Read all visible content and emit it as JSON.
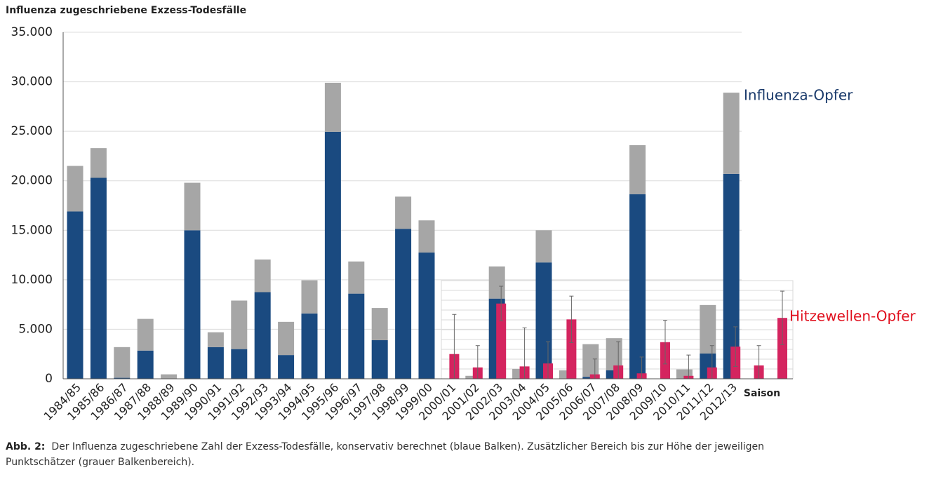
{
  "chart_data": {
    "type": "bar",
    "title": "Influenza zugeschriebene Exzess-Todesfälle",
    "x_label": "Saison",
    "categories": [
      "1984/85",
      "1985/86",
      "1986/87",
      "1987/88",
      "1988/89",
      "1989/90",
      "1990/91",
      "1991/92",
      "1992/93",
      "1993/94",
      "1994/95",
      "1995/96",
      "1996/97",
      "1997/98",
      "1998/99",
      "1999/00",
      "2000/01",
      "2001/02",
      "2002/03",
      "2003/04",
      "2004/05",
      "2005/06",
      "2006/07",
      "2007/08",
      "2008/09",
      "2009/10",
      "2010/11",
      "2011/12",
      "2012/13",
      null,
      null
    ],
    "series": [
      {
        "name": "Influenza-Opfer",
        "color": "#1a4a80",
        "values": [
          16900,
          20300,
          100,
          2850,
          0,
          15000,
          3200,
          3000,
          8750,
          2400,
          6600,
          24950,
          8600,
          3900,
          15150,
          12750,
          0,
          0,
          8100,
          0,
          11750,
          0,
          200,
          850,
          18650,
          0,
          0,
          2550,
          20700,
          null,
          null
        ]
      },
      {
        "color": "#a6a6a6",
        "values": [
          4600,
          3000,
          3100,
          3200,
          450,
          4800,
          1500,
          4900,
          3300,
          3350,
          3350,
          4950,
          3250,
          3250,
          3250,
          3250,
          0,
          300,
          3250,
          1000,
          3250,
          850,
          3300,
          3250,
          4950,
          0,
          950,
          4900,
          8200,
          null,
          null
        ]
      },
      {
        "name": "Hitzewellen-Opfer",
        "color": "#d4245f",
        "values": [
          null,
          null,
          null,
          null,
          null,
          null,
          null,
          null,
          null,
          null,
          null,
          null,
          null,
          null,
          null,
          null,
          2500,
          1150,
          7600,
          1250,
          1550,
          6000,
          450,
          1350,
          550,
          3700,
          300,
          1150,
          3250,
          1350,
          6150
        ],
        "errors": [
          null,
          null,
          null,
          null,
          null,
          null,
          null,
          null,
          null,
          null,
          null,
          null,
          null,
          null,
          null,
          null,
          4000,
          2200,
          1750,
          3900,
          2200,
          2350,
          1550,
          2400,
          1650,
          2200,
          2100,
          2200,
          2000,
          2000,
          2700
        ]
      }
    ],
    "ylim": [
      0,
      35000
    ],
    "yticks": [
      0,
      {
        "value": 5000,
        "label": "5.000"
      },
      {
        "value": 10000,
        "label": "10.000"
      },
      {
        "value": 15000,
        "label": "15.000"
      },
      {
        "value": 20000,
        "label": "20.000"
      },
      {
        "value": 25000,
        "label": "25.000"
      },
      {
        "value": 30000,
        "label": "30.000"
      },
      {
        "value": 35000,
        "label": "35.000"
      }
    ],
    "grid": true,
    "caption": {
      "label": "Abb. 2:",
      "text": "Der Influenza zugeschriebene Zahl der Exzess-Todesfälle, konservativ berechnet (blaue Balken). Zusätzlicher Bereich bis zur Höhe der jeweiligen Punktschätzer (grauer Balkenbereich)."
    }
  }
}
